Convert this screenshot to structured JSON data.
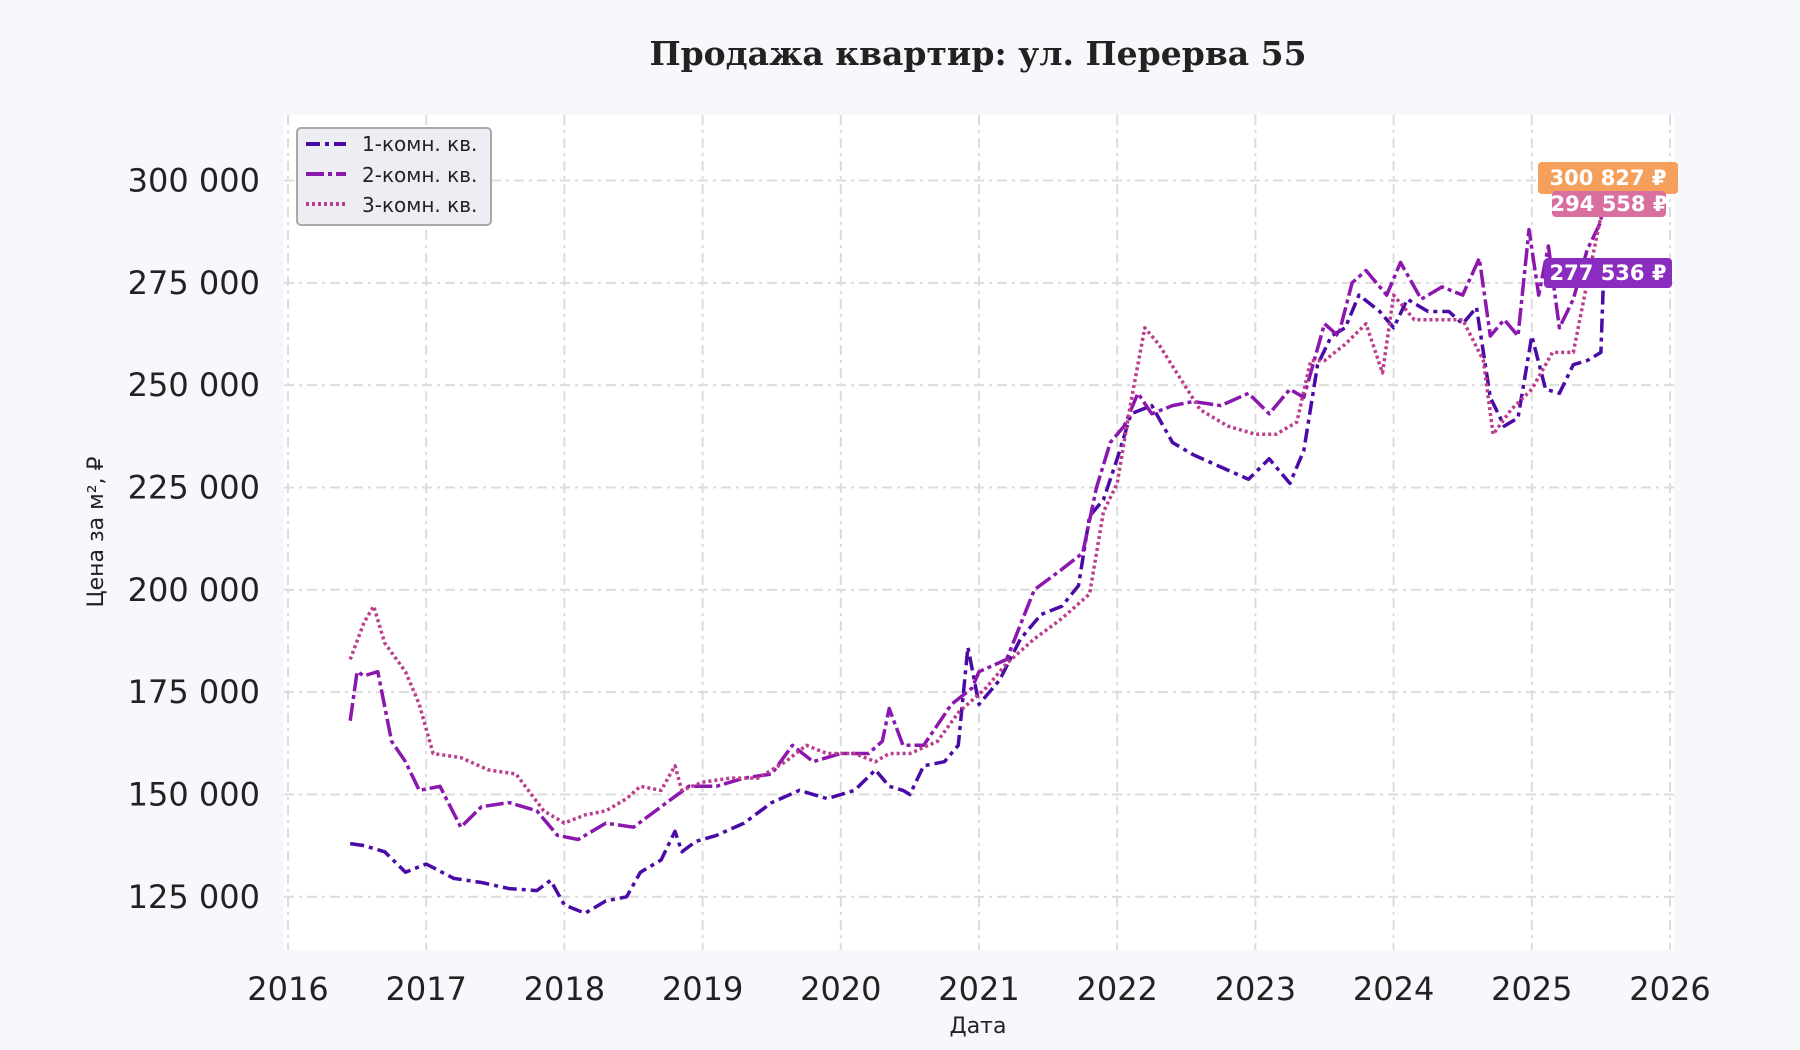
{
  "chart_data": {
    "type": "line",
    "title": "Продажа квартир: ул. Перерва 55",
    "xlabel": "Дата",
    "ylabel": "Цена за м², ₽",
    "xlim": [
      2016,
      2026
    ],
    "ylim": [
      112000,
      316000
    ],
    "x_ticks": [
      "2016",
      "2017",
      "2018",
      "2019",
      "2020",
      "2021",
      "2022",
      "2023",
      "2024",
      "2025",
      "2026"
    ],
    "y_ticks": [
      {
        "value": 125000,
        "label": "125 000"
      },
      {
        "value": 150000,
        "label": "150 000"
      },
      {
        "value": 175000,
        "label": "175 000"
      },
      {
        "value": 200000,
        "label": "200 000"
      },
      {
        "value": 225000,
        "label": "225 000"
      },
      {
        "value": 250000,
        "label": "250 000"
      },
      {
        "value": 275000,
        "label": "275 000"
      },
      {
        "value": 300000,
        "label": "300 000"
      }
    ],
    "grid": true,
    "legend_position": "top-left",
    "series": [
      {
        "name": "1-комн. кв.",
        "color": "#4a0aa6",
        "dash": "dashdot",
        "x": [
          2016.45,
          2016.55,
          2016.7,
          2016.85,
          2017.0,
          2017.2,
          2017.4,
          2017.6,
          2017.8,
          2017.9,
          2018.0,
          2018.15,
          2018.3,
          2018.45,
          2018.55,
          2018.7,
          2018.8,
          2018.85,
          2018.95,
          2019.1,
          2019.3,
          2019.5,
          2019.7,
          2019.9,
          2020.1,
          2020.25,
          2020.35,
          2020.45,
          2020.5,
          2020.6,
          2020.75,
          2020.85,
          2020.92,
          2021.0,
          2021.15,
          2021.3,
          2021.45,
          2021.6,
          2021.72,
          2021.8,
          2021.9,
          2022.0,
          2022.1,
          2022.25,
          2022.4,
          2022.55,
          2022.75,
          2022.95,
          2023.1,
          2023.25,
          2023.35,
          2023.45,
          2023.55,
          2023.65,
          2023.75,
          2023.9,
          2024.0,
          2024.1,
          2024.25,
          2024.4,
          2024.5,
          2024.6,
          2024.7,
          2024.8,
          2024.9,
          2025.0,
          2025.1,
          2025.2,
          2025.3,
          2025.4,
          2025.5,
          2025.52
        ],
        "y": [
          138000,
          137500,
          136000,
          131000,
          133000,
          129500,
          128500,
          127000,
          126500,
          129000,
          123000,
          121000,
          124000,
          125000,
          131000,
          134000,
          141000,
          136000,
          138500,
          140000,
          143000,
          148000,
          151000,
          149000,
          151000,
          156000,
          152000,
          151000,
          150000,
          157000,
          158000,
          162000,
          186000,
          172000,
          178000,
          188000,
          194000,
          196000,
          201000,
          218000,
          222000,
          232000,
          243000,
          245000,
          236000,
          233000,
          230000,
          227000,
          232000,
          226000,
          234000,
          255000,
          262000,
          264000,
          272000,
          268000,
          264000,
          271000,
          268000,
          268000,
          265000,
          269000,
          247000,
          240000,
          242000,
          262000,
          249000,
          248000,
          255000,
          256000,
          258000,
          277536
        ]
      },
      {
        "name": "2-комн. кв.",
        "color": "#8b17ae",
        "dash": "dashdot2",
        "x": [
          2016.45,
          2016.5,
          2016.55,
          2016.65,
          2016.75,
          2016.85,
          2016.95,
          2017.1,
          2017.25,
          2017.4,
          2017.6,
          2017.8,
          2017.95,
          2018.1,
          2018.3,
          2018.5,
          2018.7,
          2018.9,
          2019.1,
          2019.3,
          2019.5,
          2019.65,
          2019.8,
          2020.0,
          2020.2,
          2020.3,
          2020.35,
          2020.45,
          2020.6,
          2020.8,
          2020.95,
          2021.0,
          2021.2,
          2021.4,
          2021.6,
          2021.75,
          2021.85,
          2021.95,
          2022.05,
          2022.15,
          2022.25,
          2022.4,
          2022.55,
          2022.75,
          2022.95,
          2023.1,
          2023.25,
          2023.35,
          2023.5,
          2023.6,
          2023.7,
          2023.8,
          2023.95,
          2024.05,
          2024.2,
          2024.35,
          2024.5,
          2024.62,
          2024.7,
          2024.8,
          2024.9,
          2024.98,
          2025.05,
          2025.12,
          2025.2,
          2025.3,
          2025.4,
          2025.5,
          2025.52
        ],
        "y": [
          168000,
          180000,
          179000,
          180000,
          163000,
          158000,
          151000,
          152000,
          142000,
          147000,
          148000,
          146000,
          140000,
          139000,
          143000,
          142000,
          147000,
          152000,
          152000,
          154000,
          155000,
          162000,
          158000,
          160000,
          160000,
          163000,
          171000,
          162000,
          162000,
          172000,
          176000,
          180000,
          183000,
          200000,
          205000,
          209000,
          225000,
          236000,
          240000,
          248000,
          243000,
          245000,
          246000,
          245000,
          248000,
          243000,
          249000,
          247000,
          265000,
          262000,
          275000,
          278000,
          272000,
          280000,
          271000,
          274000,
          272000,
          281000,
          262000,
          266000,
          262000,
          288000,
          272000,
          284000,
          264000,
          271000,
          283000,
          290000,
          300827
        ]
      },
      {
        "name": "3-комн. кв.",
        "color": "#bc3d8c",
        "dash": "dotted",
        "x": [
          2016.45,
          2016.55,
          2016.62,
          2016.7,
          2016.85,
          2016.95,
          2017.05,
          2017.25,
          2017.45,
          2017.65,
          2017.85,
          2018.0,
          2018.15,
          2018.3,
          2018.45,
          2018.55,
          2018.7,
          2018.8,
          2018.85,
          2019.0,
          2019.2,
          2019.4,
          2019.6,
          2019.75,
          2019.9,
          2020.1,
          2020.25,
          2020.35,
          2020.5,
          2020.7,
          2020.85,
          2020.95,
          2021.05,
          2021.2,
          2021.4,
          2021.6,
          2021.8,
          2021.9,
          2022.0,
          2022.1,
          2022.2,
          2022.3,
          2022.45,
          2022.6,
          2022.8,
          2023.0,
          2023.15,
          2023.3,
          2023.4,
          2023.5,
          2023.65,
          2023.8,
          2023.92,
          2024.0,
          2024.15,
          2024.35,
          2024.5,
          2024.65,
          2024.72,
          2024.85,
          2025.0,
          2025.15,
          2025.3,
          2025.4,
          2025.45,
          2025.52
        ],
        "y": [
          183000,
          192000,
          196000,
          187000,
          180000,
          172000,
          160000,
          159000,
          156000,
          155000,
          146000,
          143000,
          145000,
          146000,
          149000,
          152000,
          151000,
          157000,
          151000,
          153000,
          154000,
          154000,
          158000,
          162000,
          160000,
          160000,
          158000,
          160000,
          160000,
          163000,
          170000,
          173000,
          176000,
          182000,
          188000,
          193000,
          199000,
          219000,
          226000,
          246000,
          264000,
          260000,
          252000,
          244000,
          240000,
          238000,
          238000,
          241000,
          256000,
          256000,
          260000,
          265000,
          253000,
          272000,
          266000,
          266000,
          266000,
          256000,
          238000,
          244000,
          249000,
          258000,
          258000,
          275000,
          283000,
          294558
        ]
      }
    ],
    "end_labels": [
      {
        "text": "300 827 ₽",
        "color": "#f4a05c",
        "value": 300827
      },
      {
        "text": "294 558 ₽",
        "color": "#d86f9e",
        "value": 294558
      },
      {
        "text": "277 536 ₽",
        "color": "#8a2cc0",
        "value": 277536
      }
    ]
  }
}
